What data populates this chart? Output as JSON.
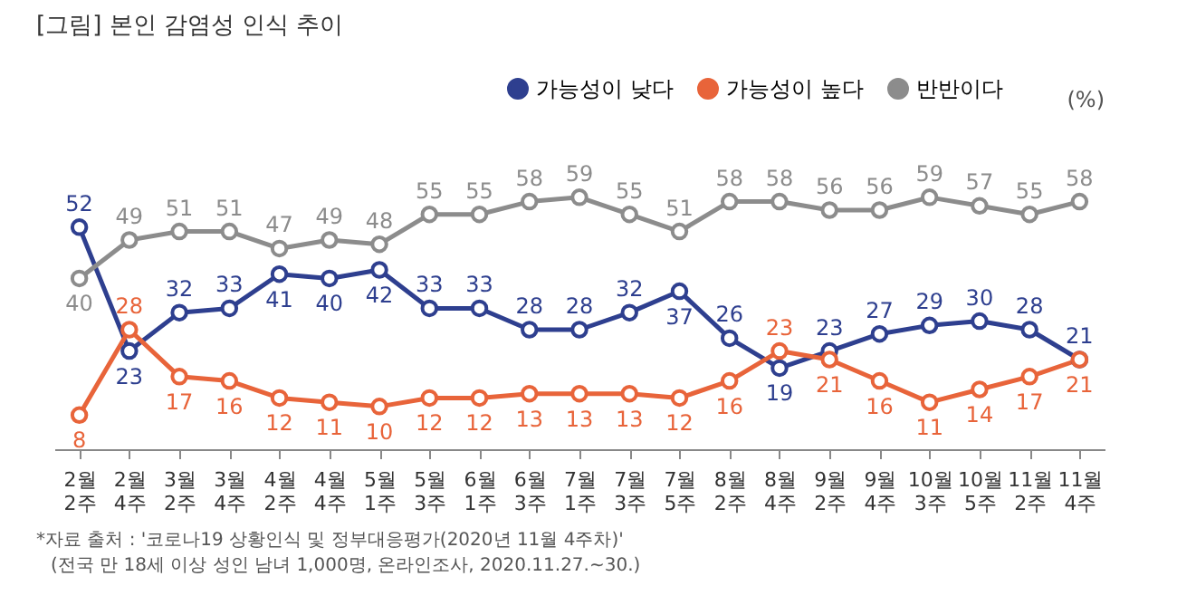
{
  "chart_data": {
    "type": "line",
    "title": "[그림] 본인 감염성 인식 추이",
    "ylabel": "(%)",
    "categories": [
      "2월 2주",
      "2월 4주",
      "3월 2주",
      "3월 4주",
      "4월 2주",
      "4월 4주",
      "5월 1주",
      "5월 3주",
      "6월 1주",
      "6월 3주",
      "7월 1주",
      "7월 3주",
      "7월 5주",
      "8월 2주",
      "8월 4주",
      "9월 2주",
      "9월 4주",
      "10월 3주",
      "10월 5주",
      "11월 2주",
      "11월 4주"
    ],
    "series": [
      {
        "name": "가능성이 낮다",
        "color": "#2e3f8f",
        "values": [
          52,
          23,
          32,
          33,
          41,
          40,
          42,
          33,
          33,
          28,
          28,
          32,
          37,
          26,
          19,
          23,
          27,
          29,
          30,
          28,
          21
        ]
      },
      {
        "name": "가능성이 높다",
        "color": "#e8643a",
        "values": [
          8,
          28,
          17,
          16,
          12,
          11,
          10,
          12,
          12,
          13,
          13,
          13,
          12,
          16,
          23,
          21,
          16,
          11,
          14,
          17,
          21
        ]
      },
      {
        "name": "반반이다",
        "color": "#8c8c8c",
        "values": [
          40,
          49,
          51,
          51,
          47,
          49,
          48,
          55,
          55,
          58,
          59,
          55,
          51,
          58,
          58,
          56,
          56,
          59,
          57,
          55,
          58
        ]
      }
    ],
    "marker": "circle",
    "data_labels": true,
    "grid": false,
    "legend": "top right",
    "annotations": [
      "*자료 출처 : '코로나19 상황인식 및 정부대응평가(2020년 11월 4주차)'",
      "(전국 만 18세 이상 성인 남녀 1,000명, 온라인조사, 2020.11.27.~30.)"
    ]
  }
}
